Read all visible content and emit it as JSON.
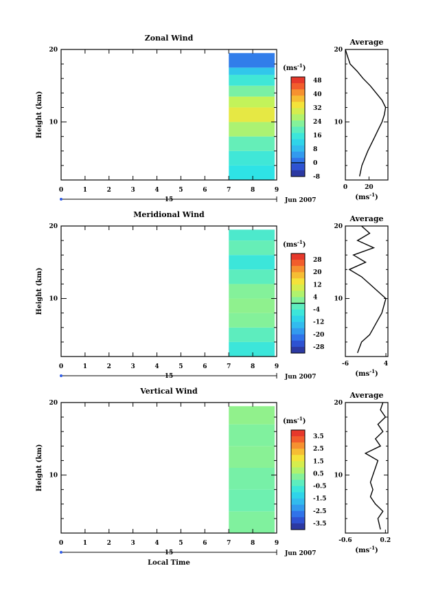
{
  "chart_data": [
    {
      "type": "heatmap",
      "title": "Zonal Wind",
      "ylabel": "Height (km)",
      "xlabel": "",
      "xlim": [
        0,
        9
      ],
      "ylim": [
        2,
        20
      ],
      "x_ticks": [
        "0",
        "1",
        "2",
        "3",
        "4",
        "5",
        "6",
        "7",
        "8",
        "9"
      ],
      "y_ticks": [
        "10",
        "20"
      ],
      "date_day": "15",
      "date_month": "Jun 2007",
      "data_x_range": [
        7,
        9
      ],
      "colorbar": {
        "unit": "(ms",
        "unit_exp": "-1",
        "unit_close": ")",
        "min": -8,
        "max": 50,
        "ticks": [
          "48",
          "40",
          "32",
          "24",
          "16",
          "8",
          "0",
          "-8"
        ],
        "tick_values": [
          48,
          40,
          32,
          24,
          16,
          8,
          0,
          -8
        ],
        "zero_line": 0
      },
      "profile_values": [
        {
          "h": 2.5,
          "v": 12
        },
        {
          "h": 4,
          "v": 14
        },
        {
          "h": 6,
          "v": 19
        },
        {
          "h": 8,
          "v": 25
        },
        {
          "h": 9,
          "v": 28
        },
        {
          "h": 10,
          "v": 31
        },
        {
          "h": 11,
          "v": 33
        },
        {
          "h": 12,
          "v": 34
        },
        {
          "h": 13,
          "v": 31
        },
        {
          "h": 14,
          "v": 26
        },
        {
          "h": 15,
          "v": 21
        },
        {
          "h": 16,
          "v": 15
        },
        {
          "h": 17,
          "v": 10
        },
        {
          "h": 18,
          "v": 4
        },
        {
          "h": 19,
          "v": 2
        },
        {
          "h": 20,
          "v": 0
        }
      ],
      "heat_bands": [
        {
          "h0": 2,
          "h1": 4,
          "v": 14
        },
        {
          "h0": 4,
          "h1": 6,
          "v": 16
        },
        {
          "h0": 6,
          "h1": 8,
          "v": 20
        },
        {
          "h0": 8,
          "h1": 10,
          "v": 26
        },
        {
          "h0": 10,
          "h1": 12,
          "v": 32
        },
        {
          "h0": 12,
          "h1": 13.5,
          "v": 28
        },
        {
          "h0": 13.5,
          "h1": 15,
          "v": 22
        },
        {
          "h0": 15,
          "h1": 16.5,
          "v": 16
        },
        {
          "h0": 16.5,
          "h1": 17.5,
          "v": 10
        },
        {
          "h0": 17.5,
          "h1": 19.5,
          "v": 2
        }
      ],
      "profile": {
        "title": "Average",
        "xlim": [
          0,
          36
        ],
        "x_ticks": [
          {
            "label": "0",
            "v": 0
          },
          {
            "label": "20",
            "v": 20
          }
        ],
        "unit": "(ms",
        "unit_exp": "-1",
        "unit_close": ")"
      }
    },
    {
      "type": "heatmap",
      "title": "Meridional Wind",
      "ylabel": "Height (km)",
      "xlabel": "",
      "xlim": [
        0,
        9
      ],
      "ylim": [
        2,
        20
      ],
      "x_ticks": [
        "0",
        "1",
        "2",
        "3",
        "4",
        "5",
        "6",
        "7",
        "8",
        "9"
      ],
      "y_ticks": [
        "10",
        "20"
      ],
      "date_day": "15",
      "date_month": "Jun 2007",
      "data_x_range": [
        7,
        9
      ],
      "colorbar": {
        "unit": "(ms",
        "unit_exp": "-1",
        "unit_close": ")",
        "min": -32,
        "max": 32,
        "ticks": [
          "28",
          "20",
          "12",
          "4",
          "-4",
          "-12",
          "-20",
          "-28"
        ],
        "tick_values": [
          28,
          20,
          12,
          4,
          -4,
          -12,
          -20,
          -28
        ],
        "zero_line": 0
      },
      "profile_values": [
        {
          "h": 2.5,
          "v": -3
        },
        {
          "h": 4,
          "v": -2
        },
        {
          "h": 5,
          "v": 0
        },
        {
          "h": 6,
          "v": 1
        },
        {
          "h": 7,
          "v": 2
        },
        {
          "h": 8,
          "v": 3
        },
        {
          "h": 9,
          "v": 3.5
        },
        {
          "h": 10,
          "v": 4
        },
        {
          "h": 11,
          "v": 2
        },
        {
          "h": 12,
          "v": 0
        },
        {
          "h": 13,
          "v": -2
        },
        {
          "h": 14,
          "v": -5
        },
        {
          "h": 15,
          "v": -1
        },
        {
          "h": 16,
          "v": -4
        },
        {
          "h": 17,
          "v": 1
        },
        {
          "h": 18,
          "v": -3
        },
        {
          "h": 19,
          "v": 0
        },
        {
          "h": 20,
          "v": -2
        }
      ],
      "heat_bands": [
        {
          "h0": 2,
          "h1": 4,
          "v": -6
        },
        {
          "h0": 4,
          "h1": 6,
          "v": -2
        },
        {
          "h0": 6,
          "h1": 8,
          "v": 2
        },
        {
          "h0": 8,
          "h1": 10,
          "v": 3
        },
        {
          "h0": 10,
          "h1": 12,
          "v": 2
        },
        {
          "h0": 12,
          "h1": 14,
          "v": -2
        },
        {
          "h0": 14,
          "h1": 16,
          "v": -6
        },
        {
          "h0": 16,
          "h1": 18,
          "v": -1
        },
        {
          "h0": 18,
          "h1": 19.5,
          "v": -4
        }
      ],
      "profile": {
        "title": "Average",
        "xlim": [
          -6,
          4.5
        ],
        "x_ticks": [
          {
            "label": "-6",
            "v": -6
          },
          {
            "label": "4",
            "v": 4
          }
        ],
        "unit": "(ms",
        "unit_exp": "-1",
        "unit_close": ")"
      }
    },
    {
      "type": "heatmap",
      "title": "Vertical Wind",
      "ylabel": "Height (km)",
      "xlabel": "Local Time",
      "xlim": [
        0,
        9
      ],
      "ylim": [
        2,
        20
      ],
      "x_ticks": [
        "0",
        "1",
        "2",
        "3",
        "4",
        "5",
        "6",
        "7",
        "8",
        "9"
      ],
      "y_ticks": [
        "10",
        "20"
      ],
      "date_day": "15",
      "date_month": "Jun 2007",
      "data_x_range": [
        7,
        9
      ],
      "colorbar": {
        "unit": "(ms",
        "unit_exp": "-1",
        "unit_close": ")",
        "min": -4,
        "max": 4,
        "ticks": [
          "3.5",
          "2.5",
          "1.5",
          "0.5",
          "-0.5",
          "-1.5",
          "-2.5",
          "-3.5"
        ],
        "tick_values": [
          3.5,
          2.5,
          1.5,
          0.5,
          -0.5,
          -1.5,
          -2.5,
          -3.5
        ],
        "zero_line": null
      },
      "profile_values": [
        {
          "h": 2.5,
          "v": 0.1
        },
        {
          "h": 4,
          "v": 0.05
        },
        {
          "h": 5,
          "v": 0.15
        },
        {
          "h": 6,
          "v": 0.0
        },
        {
          "h": 7,
          "v": -0.1
        },
        {
          "h": 8,
          "v": -0.05
        },
        {
          "h": 9,
          "v": -0.1
        },
        {
          "h": 10,
          "v": -0.05
        },
        {
          "h": 11,
          "v": 0.0
        },
        {
          "h": 12,
          "v": 0.05
        },
        {
          "h": 13,
          "v": -0.2
        },
        {
          "h": 14,
          "v": 0.1
        },
        {
          "h": 15,
          "v": 0.0
        },
        {
          "h": 16,
          "v": 0.15
        },
        {
          "h": 17,
          "v": 0.05
        },
        {
          "h": 18,
          "v": 0.2
        },
        {
          "h": 19,
          "v": 0.1
        },
        {
          "h": 20,
          "v": 0.15
        }
      ],
      "heat_bands": [
        {
          "h0": 2,
          "h1": 5,
          "v": 0.2
        },
        {
          "h0": 5,
          "h1": 8,
          "v": 0.0
        },
        {
          "h0": 8,
          "h1": 11,
          "v": 0.1
        },
        {
          "h0": 11,
          "h1": 14,
          "v": 0.3
        },
        {
          "h0": 14,
          "h1": 17,
          "v": 0.2
        },
        {
          "h0": 17,
          "h1": 19.5,
          "v": 0.4
        }
      ],
      "profile": {
        "title": "Average",
        "xlim": [
          -0.6,
          0.25
        ],
        "x_ticks": [
          {
            "label": "-0.6",
            "v": -0.6
          },
          {
            "label": "0.2",
            "v": 0.2
          }
        ],
        "unit": "(ms",
        "unit_exp": "-1",
        "unit_close": ")"
      }
    }
  ]
}
